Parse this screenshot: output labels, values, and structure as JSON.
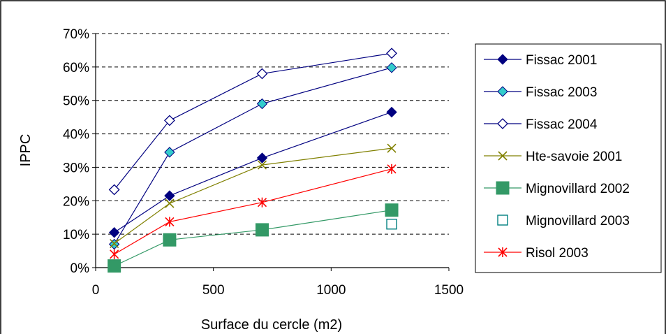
{
  "chart_data": {
    "type": "line",
    "title": "",
    "xlabel": "Surface du cercle (m2)",
    "ylabel": "IPPC",
    "xlim": [
      0,
      1500
    ],
    "ylim": [
      0,
      0.7
    ],
    "x_ticks": [
      0,
      500,
      1000,
      1500
    ],
    "x_tick_labels": [
      "0",
      "500",
      "1000",
      "1500"
    ],
    "y_ticks": [
      0,
      0.1,
      0.2,
      0.3,
      0.4,
      0.5,
      0.6,
      0.7
    ],
    "y_tick_labels": [
      "0%",
      "10%",
      "20%",
      "30%",
      "40%",
      "50%",
      "60%",
      "70%"
    ],
    "grid": "horizontal dashed",
    "legend_position": "right",
    "series": [
      {
        "name": "Fissac 2001",
        "marker": "diamond-filled",
        "color": "#000080",
        "line": true,
        "x": [
          79,
          314,
          707,
          1257
        ],
        "y": [
          0.105,
          0.215,
          0.328,
          0.465
        ]
      },
      {
        "name": "Fissac 2003",
        "marker": "diamond-cyan",
        "color": "#000080",
        "fill": "#33CCCC",
        "line": true,
        "x": [
          79,
          314,
          707,
          1257
        ],
        "y": [
          0.07,
          0.345,
          0.49,
          0.598
        ]
      },
      {
        "name": "Fissac 2004",
        "marker": "diamond-open",
        "color": "#000080",
        "line": true,
        "x": [
          79,
          314,
          707,
          1257
        ],
        "y": [
          0.233,
          0.44,
          0.58,
          0.641
        ]
      },
      {
        "name": "Hte-savoie 2001",
        "marker": "x",
        "color": "#808000",
        "line": true,
        "x": [
          79,
          314,
          707,
          1257
        ],
        "y": [
          0.072,
          0.192,
          0.307,
          0.357
        ]
      },
      {
        "name": "Mignovillard 2002",
        "marker": "square-filled",
        "color": "#339966",
        "line": true,
        "x": [
          79,
          314,
          707,
          1257
        ],
        "y": [
          0.005,
          0.083,
          0.113,
          0.172
        ]
      },
      {
        "name": "Mignovillard 2003",
        "marker": "square-open",
        "color": "#008080",
        "line": false,
        "x": [
          1257
        ],
        "y": [
          0.13
        ]
      },
      {
        "name": "Risol 2003",
        "marker": "star",
        "color": "#FF0000",
        "line": true,
        "x": [
          79,
          314,
          707,
          1257
        ],
        "y": [
          0.04,
          0.137,
          0.195,
          0.295
        ]
      }
    ]
  }
}
